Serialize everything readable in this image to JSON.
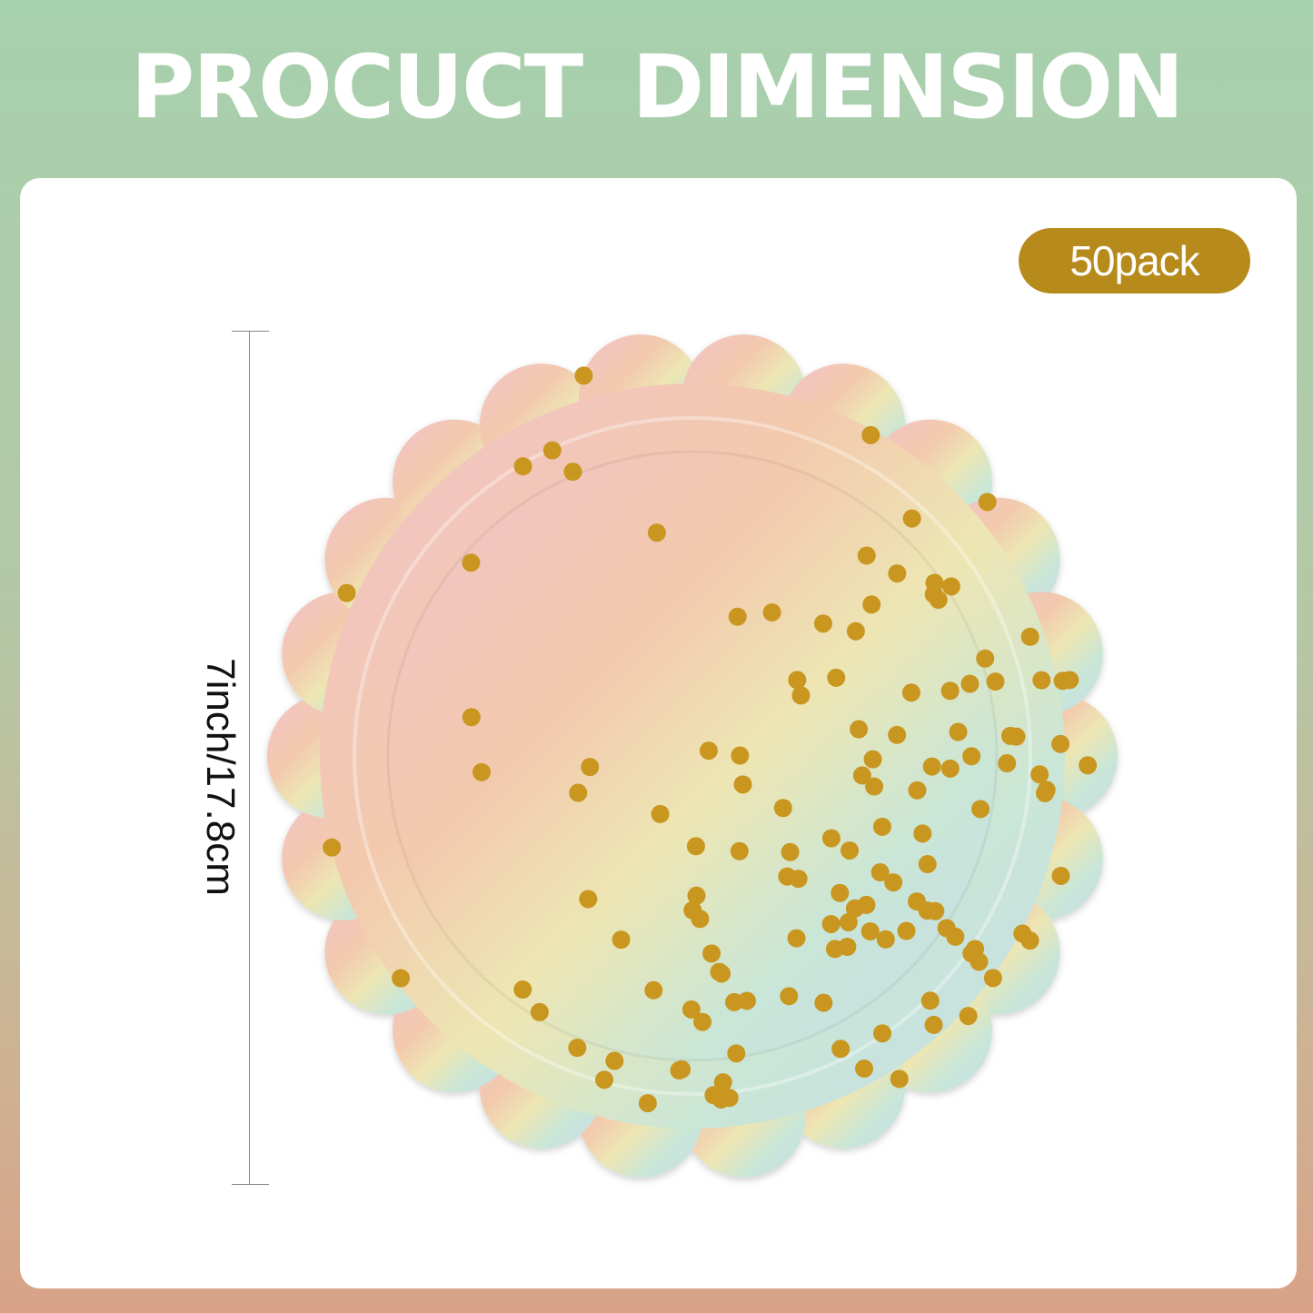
{
  "header": {
    "title": "PROCUCT  DIMENSION"
  },
  "badge": {
    "label": "50pack",
    "color": "#b78a1c"
  },
  "dimension": {
    "label": "7inch/17.8cm"
  },
  "colors": {
    "dots": "#c9961f",
    "plate_pink": "#f2c4b8",
    "plate_yellow": "#efe7b6",
    "plate_mint": "#c7e8d6",
    "plate_blue": "#c9dfe9"
  }
}
